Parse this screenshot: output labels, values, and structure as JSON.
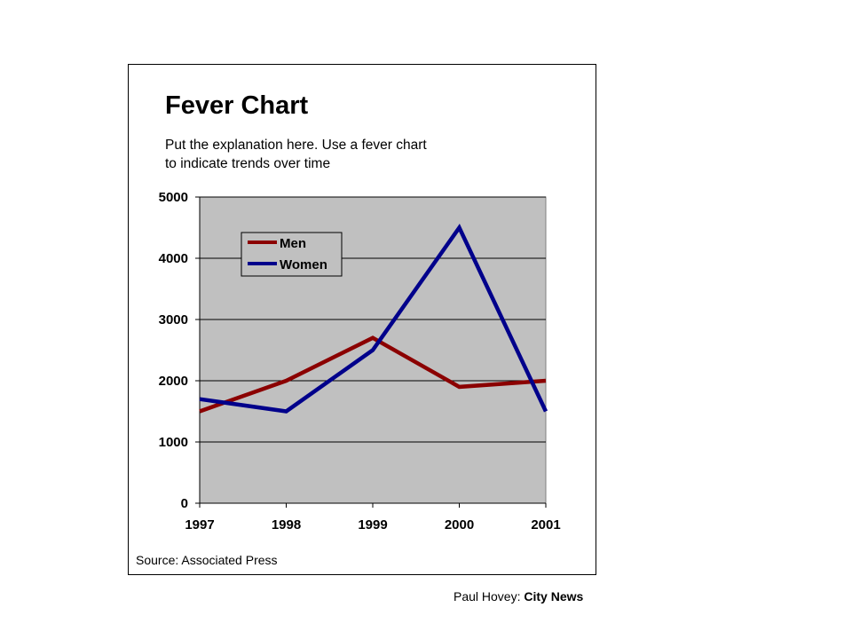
{
  "chart_data": {
    "type": "line",
    "title": "Fever Chart",
    "subtitle_lines": [
      "Put the explanation here. Use a fever chart",
      "to indicate trends over time"
    ],
    "xlabel": "",
    "ylabel": "",
    "x": [
      "1997",
      "1998",
      "1999",
      "2000",
      "2001"
    ],
    "ylim": [
      0,
      5000
    ],
    "yticks": [
      "0",
      "1000",
      "2000",
      "3000",
      "4000",
      "5000"
    ],
    "series": [
      {
        "name": "Men",
        "color": "#8b0000",
        "values": [
          1500,
          2000,
          2700,
          1900,
          2000
        ]
      },
      {
        "name": "Women",
        "color": "#00008b",
        "values": [
          1700,
          1500,
          2500,
          4500,
          1500
        ]
      }
    ],
    "grid": true,
    "plot_background": "#c0c0c0",
    "legend_position": "top-left"
  },
  "source": "Source: Associated Press",
  "credit": {
    "author": "Paul Hovey:",
    "org": "City News"
  }
}
